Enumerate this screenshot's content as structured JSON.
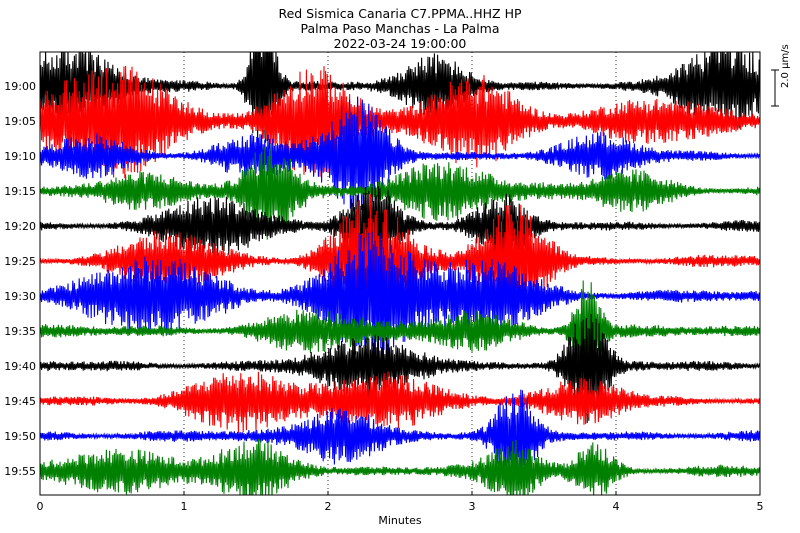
{
  "chart_data": {
    "type": "line",
    "title": "Red Sismica Canaria C7.PPMA..HHZ HP",
    "subtitle": "Palma Paso Manchas - La Palma",
    "datetime": "2022-03-24 19:00:00",
    "xlabel": "Minutes",
    "ylabel": "",
    "xlim": [
      0,
      5
    ],
    "x_ticks": [
      "0",
      "1",
      "2",
      "3",
      "4",
      "5"
    ],
    "row_labels": [
      "19:00",
      "19:05",
      "19:10",
      "19:15",
      "19:20",
      "19:25",
      "19:30",
      "19:35",
      "19:40",
      "19:45",
      "19:50",
      "19:55"
    ],
    "row_colors": [
      "#000000",
      "#ff0000",
      "#0000ff",
      "#008000"
    ],
    "scale_label": "2.0 μm/s",
    "grid": "vertical-dotted",
    "series": [
      {
        "label": "19:00",
        "bursts": [
          {
            "t": 0.2,
            "a": 4,
            "w": 0.35
          },
          {
            "t": 1.55,
            "a": 9,
            "w": 0.1
          },
          {
            "t": 2.75,
            "a": 3,
            "w": 0.25
          },
          {
            "t": 4.75,
            "a": 5,
            "w": 0.3
          }
        ]
      },
      {
        "label": "19:05",
        "bursts": [
          {
            "t": 0.5,
            "a": 6,
            "w": 0.5
          },
          {
            "t": 1.9,
            "a": 6,
            "w": 0.3
          },
          {
            "t": 3.0,
            "a": 5,
            "w": 0.35
          },
          {
            "t": 4.3,
            "a": 2,
            "w": 0.5
          }
        ]
      },
      {
        "label": "19:10",
        "bursts": [
          {
            "t": 0.35,
            "a": 2,
            "w": 0.3
          },
          {
            "t": 1.5,
            "a": 2,
            "w": 0.3
          },
          {
            "t": 2.2,
            "a": 6,
            "w": 0.25
          },
          {
            "t": 3.9,
            "a": 2,
            "w": 0.3
          }
        ]
      },
      {
        "label": "19:15",
        "bursts": [
          {
            "t": 0.7,
            "a": 2,
            "w": 0.3
          },
          {
            "t": 1.6,
            "a": 5,
            "w": 0.2
          },
          {
            "t": 2.8,
            "a": 3,
            "w": 0.4
          },
          {
            "t": 4.1,
            "a": 2,
            "w": 0.3
          }
        ]
      },
      {
        "label": "19:20",
        "bursts": [
          {
            "t": 1.2,
            "a": 3,
            "w": 0.35
          },
          {
            "t": 2.3,
            "a": 5,
            "w": 0.2
          },
          {
            "t": 3.2,
            "a": 3,
            "w": 0.2
          }
        ]
      },
      {
        "label": "19:25",
        "bursts": [
          {
            "t": 0.9,
            "a": 3,
            "w": 0.35
          },
          {
            "t": 2.3,
            "a": 7,
            "w": 0.3
          },
          {
            "t": 3.3,
            "a": 6,
            "w": 0.25
          }
        ]
      },
      {
        "label": "19:30",
        "bursts": [
          {
            "t": 0.8,
            "a": 4,
            "w": 0.5
          },
          {
            "t": 2.3,
            "a": 7,
            "w": 0.35
          },
          {
            "t": 3.1,
            "a": 4,
            "w": 0.4
          }
        ]
      },
      {
        "label": "19:35",
        "bursts": [
          {
            "t": 1.9,
            "a": 2,
            "w": 0.4
          },
          {
            "t": 3.0,
            "a": 2,
            "w": 0.3
          },
          {
            "t": 3.8,
            "a": 6,
            "w": 0.1
          }
        ]
      },
      {
        "label": "19:40",
        "bursts": [
          {
            "t": 2.3,
            "a": 3,
            "w": 0.4
          },
          {
            "t": 3.8,
            "a": 6,
            "w": 0.15
          }
        ]
      },
      {
        "label": "19:45",
        "bursts": [
          {
            "t": 1.4,
            "a": 3,
            "w": 0.4
          },
          {
            "t": 2.4,
            "a": 3,
            "w": 0.4
          },
          {
            "t": 3.8,
            "a": 2,
            "w": 0.3
          }
        ]
      },
      {
        "label": "19:50",
        "bursts": [
          {
            "t": 2.1,
            "a": 3,
            "w": 0.3
          },
          {
            "t": 3.3,
            "a": 5,
            "w": 0.15
          }
        ]
      },
      {
        "label": "19:55",
        "bursts": [
          {
            "t": 0.5,
            "a": 2,
            "w": 0.5
          },
          {
            "t": 1.5,
            "a": 3,
            "w": 0.3
          },
          {
            "t": 3.3,
            "a": 3,
            "w": 0.2
          },
          {
            "t": 3.85,
            "a": 3,
            "w": 0.15
          }
        ]
      }
    ]
  }
}
